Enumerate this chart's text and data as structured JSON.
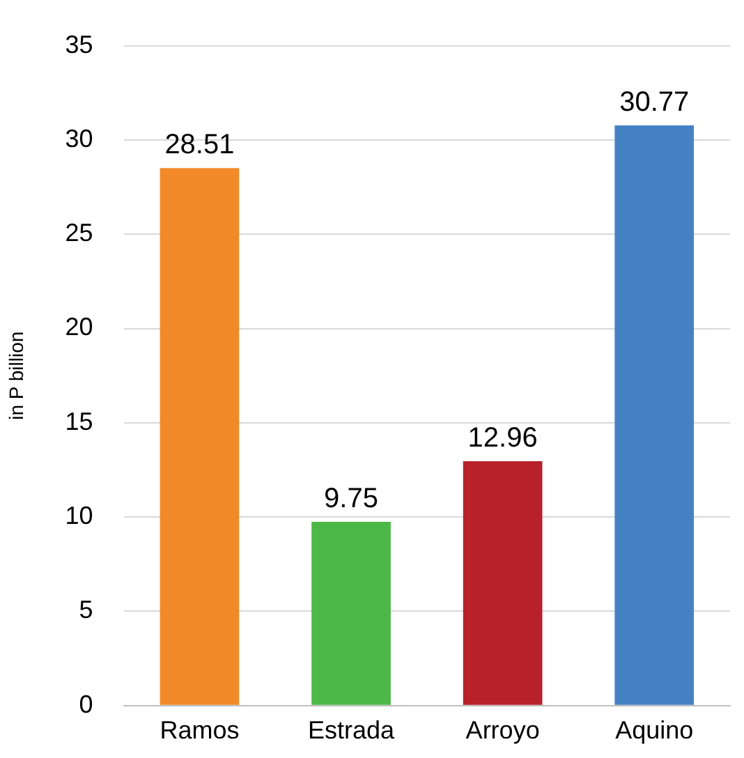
{
  "chart_data": {
    "type": "bar",
    "ylabel": "in P billion",
    "categories": [
      "Ramos",
      "Estrada",
      "Arroyo",
      "Aquino"
    ],
    "values": [
      28.51,
      9.75,
      12.96,
      30.77
    ],
    "colors": [
      "#f28a2a",
      "#4cb848",
      "#b8202a",
      "#4682c3"
    ],
    "ylim": [
      0,
      35
    ],
    "yticks": [
      0,
      5,
      10,
      15,
      20,
      25,
      30,
      35
    ],
    "grid": "y",
    "data_labels": true,
    "legend": false
  }
}
